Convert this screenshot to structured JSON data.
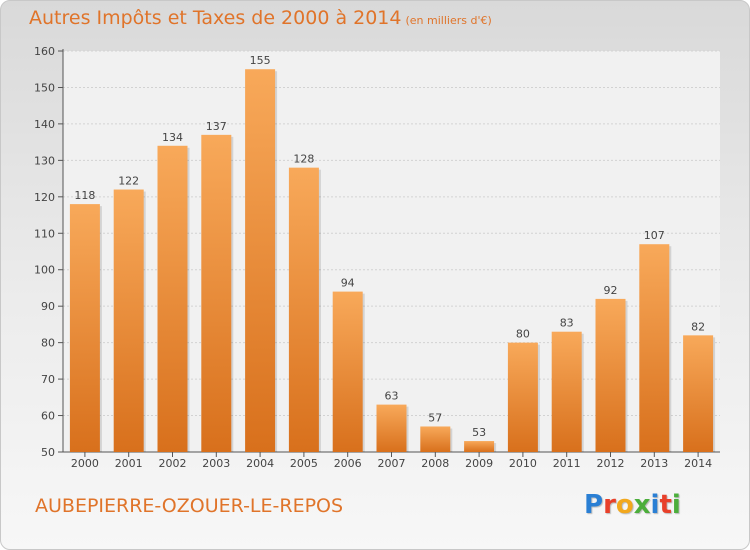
{
  "header": {
    "title": "Autres Impôts et Taxes de 2000 à 2014",
    "unit": "(en milliers d'€)"
  },
  "footer": {
    "commune": "AUBEPIERRE-OZOUER-LE-REPOS",
    "logo_letters": [
      "P",
      "r",
      "o",
      "x",
      "i",
      "t",
      "i"
    ],
    "logo_colors": [
      "#2a7fd4",
      "#e8402a",
      "#f2a81d",
      "#4cae3b",
      "#2a7fd4",
      "#e8402a",
      "#4cae3b"
    ]
  },
  "colors": {
    "bar_light": "#f8a95a",
    "bar_dark": "#d8701c",
    "accent": "#e0742a"
  },
  "chart_data": {
    "type": "bar",
    "categories": [
      "2000",
      "2001",
      "2002",
      "2003",
      "2004",
      "2005",
      "2006",
      "2007",
      "2008",
      "2009",
      "2010",
      "2011",
      "2012",
      "2013",
      "2014"
    ],
    "values": [
      118,
      122,
      134,
      137,
      155,
      128,
      94,
      63,
      57,
      53,
      80,
      83,
      92,
      107,
      82
    ],
    "data_labels": [
      "118",
      "122",
      "134",
      "137",
      "155",
      "128",
      "94",
      "63",
      "57",
      "53",
      "80",
      "83",
      "92",
      "107",
      "82"
    ],
    "title": "Autres Impôts et Taxes de 2000 à 2014",
    "ylim": [
      50,
      160
    ],
    "yticks": [
      50,
      60,
      70,
      80,
      90,
      100,
      110,
      120,
      130,
      140,
      150,
      160
    ],
    "ytick_labels": [
      "50",
      "60",
      "70",
      "80",
      "90",
      "100",
      "110",
      "120",
      "130",
      "140",
      "150",
      "160"
    ],
    "grid": true
  }
}
